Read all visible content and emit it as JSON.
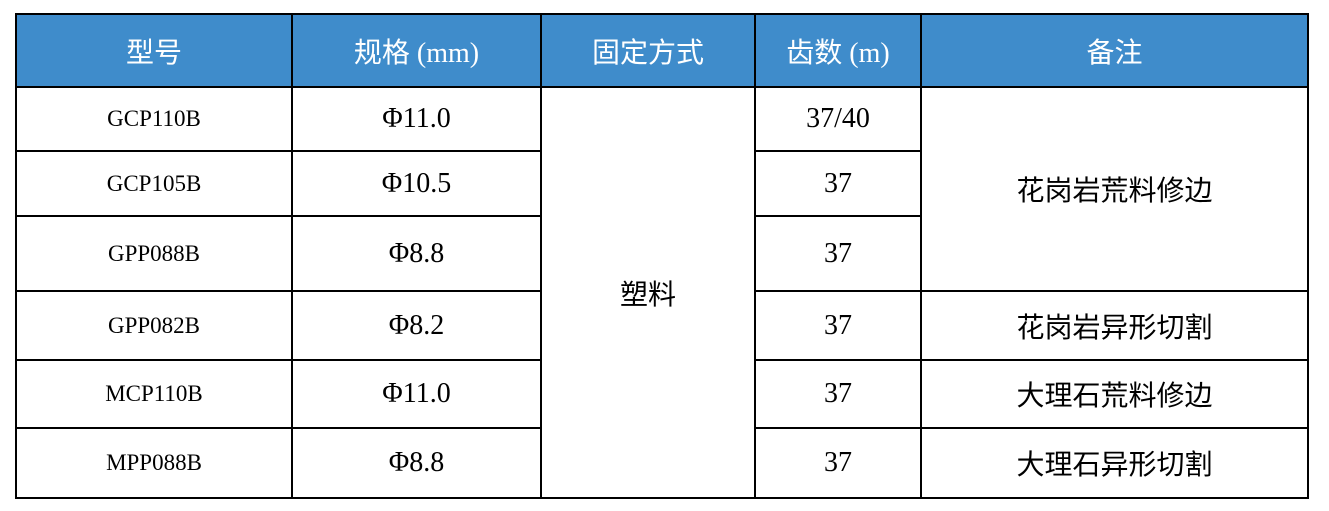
{
  "header_color": "#3f8ccb",
  "headers": [
    "型号",
    "规格 (mm)",
    "固定方式",
    "齿数 (m)",
    "备注"
  ],
  "rows": [
    {
      "model": "GCP110B",
      "spec": "Φ11.0",
      "teeth": "37/40"
    },
    {
      "model": "GCP105B",
      "spec": "Φ10.5",
      "teeth": "37"
    },
    {
      "model": "GPP088B",
      "spec": "Φ8.8",
      "teeth": "37"
    },
    {
      "model": "GPP082B",
      "spec": "Φ8.2",
      "teeth": "37"
    },
    {
      "model": "MCP110B",
      "spec": "Φ11.0",
      "teeth": "37"
    },
    {
      "model": "MPP088B",
      "spec": "Φ8.8",
      "teeth": "37"
    }
  ],
  "fixing": "塑料",
  "notes": [
    "花岗岩荒料修边",
    "花岗岩异形切割",
    "大理石荒料修边",
    "大理石异形切割"
  ]
}
